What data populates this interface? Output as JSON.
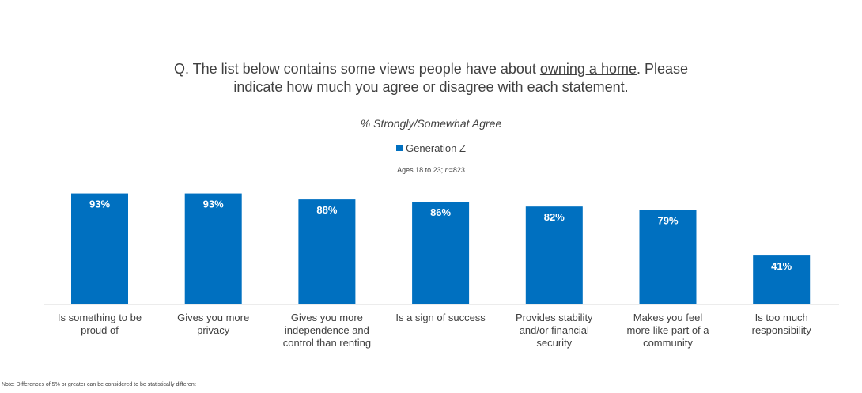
{
  "question": {
    "prefix": "Q. The list below contains some views people have about ",
    "underlined": "owning a home",
    "suffix": ". Please",
    "line2": "indicate how much you agree or disagree with each statement."
  },
  "subtitle": "% Strongly/Somewhat Agree",
  "legend": {
    "label": "Generation Z",
    "color": "#0070C0"
  },
  "sample": {
    "prefix": "Ages 18 to 23; ",
    "n_label": "n",
    "n_value": "=823"
  },
  "note": "Note:  Differences of 5% or greater can be considered to be statistically different",
  "chart_data": {
    "type": "bar",
    "title": "% Strongly/Somewhat Agree",
    "categories": [
      [
        "Is something to be",
        "proud of"
      ],
      [
        "Gives you more",
        "privacy"
      ],
      [
        "Gives you more",
        "independence and",
        "control than renting"
      ],
      [
        "Is a sign of success"
      ],
      [
        "Provides stability",
        "and/or financial",
        "security"
      ],
      [
        "Makes you feel",
        "more like part of a",
        "community"
      ],
      [
        "Is too much",
        "responsibility"
      ]
    ],
    "series": [
      {
        "name": "Generation Z",
        "color": "#0070C0",
        "values": [
          93,
          93,
          88,
          86,
          82,
          79,
          41
        ],
        "labels": [
          "93%",
          "93%",
          "88%",
          "86%",
          "82%",
          "79%",
          "41%"
        ]
      }
    ],
    "ylim": [
      0,
      100
    ],
    "grid": false,
    "legend_position": "top-center"
  }
}
